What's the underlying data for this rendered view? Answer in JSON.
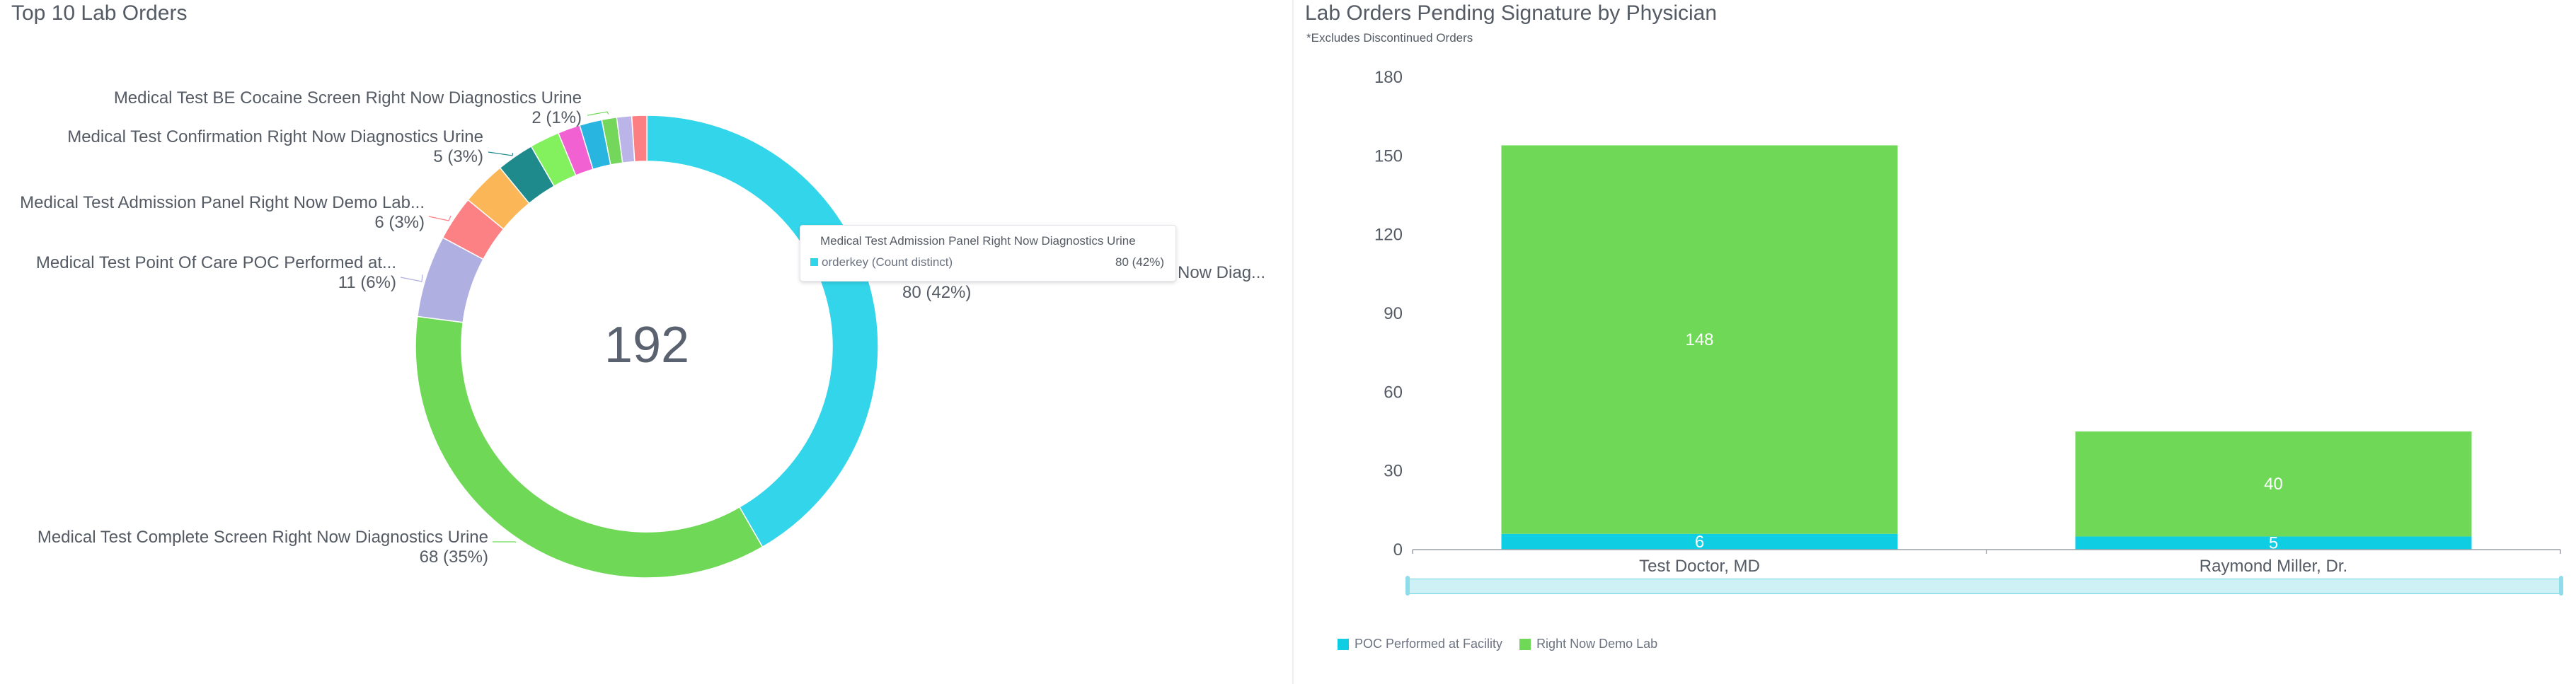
{
  "left": {
    "title": "Top 10 Lab Orders",
    "total": "192",
    "labels": [
      {
        "name": "Medical Test BE Cocaine Screen Right Now Diagnostics Urine",
        "value": "2 (1%)"
      },
      {
        "name": "Medical Test Confirmation Right Now Diagnostics Urine",
        "value": "5 (3%)"
      },
      {
        "name": "Medical Test Admission Panel Right Now Demo Lab...",
        "value": "6 (3%)"
      },
      {
        "name": "Medical Test Point Of Care POC Performed at...",
        "value": "11 (6%)"
      },
      {
        "name": "Medical Test Complete Screen Right Now Diagnostics Urine",
        "value": "68 (35%)"
      },
      {
        "name": "Now Diag...",
        "value": "80 (42%)"
      }
    ],
    "tooltip": {
      "title": "Medical Test Admission Panel Right Now Diagnostics Urine",
      "series": "orderkey (Count distinct)",
      "value": "80 (42%)"
    }
  },
  "right": {
    "title": "Lab Orders Pending Signature by Physician",
    "subtitle": "*Excludes Discontinued Orders",
    "legend": [
      {
        "name": "POC Performed at Facility",
        "color": "#0fcde3"
      },
      {
        "name": "Right Now Demo Lab",
        "color": "#6fd957"
      }
    ]
  },
  "chart_data": [
    {
      "type": "pie",
      "title": "Top 10 Lab Orders",
      "total": 192,
      "slices": [
        {
          "label": "Medical Test Admission Panel Right Now Diagnostics Urine",
          "value": 80,
          "color": "#33d5ea"
        },
        {
          "label": "Medical Test Complete Screen Right Now Diagnostics Urine",
          "value": 68,
          "color": "#6fd957"
        },
        {
          "label": "Medical Test Point Of Care POC Performed at...",
          "value": 11,
          "color": "#b0afe2"
        },
        {
          "label": "Medical Test Admission Panel Right Now Demo Lab...",
          "value": 6,
          "color": "#fc8185"
        },
        {
          "label": "",
          "value": 6,
          "color": "#fbb757"
        },
        {
          "label": "Medical Test Confirmation Right Now Diagnostics Urine",
          "value": 5,
          "color": "#1e8a8c"
        },
        {
          "label": "",
          "value": 4,
          "color": "#83f15d"
        },
        {
          "label": "",
          "value": 3,
          "color": "#f161d2"
        },
        {
          "label": "",
          "value": 3,
          "color": "#28b5df"
        },
        {
          "label": "Medical Test BE Cocaine Screen Right Now Diagnostics Urine",
          "value": 2,
          "color": "#74d75b"
        },
        {
          "label": "",
          "value": 2,
          "color": "#bbb4e8"
        },
        {
          "label": "",
          "value": 2,
          "color": "#fb7f83"
        }
      ]
    },
    {
      "type": "bar",
      "stacked": true,
      "title": "Lab Orders Pending Signature by Physician",
      "categories": [
        "Test  Doctor, MD",
        "Raymond  Miller, Dr."
      ],
      "series": [
        {
          "name": "POC Performed at Facility",
          "values": [
            6,
            5
          ],
          "color": "#0fcde3"
        },
        {
          "name": "Right Now Demo Lab",
          "values": [
            148,
            40
          ],
          "color": "#6fd957"
        }
      ],
      "ylim": [
        0,
        180
      ],
      "yticks": [
        0,
        30,
        60,
        90,
        120,
        150,
        180
      ],
      "grid": false,
      "legend_position": "bottom-left"
    }
  ]
}
